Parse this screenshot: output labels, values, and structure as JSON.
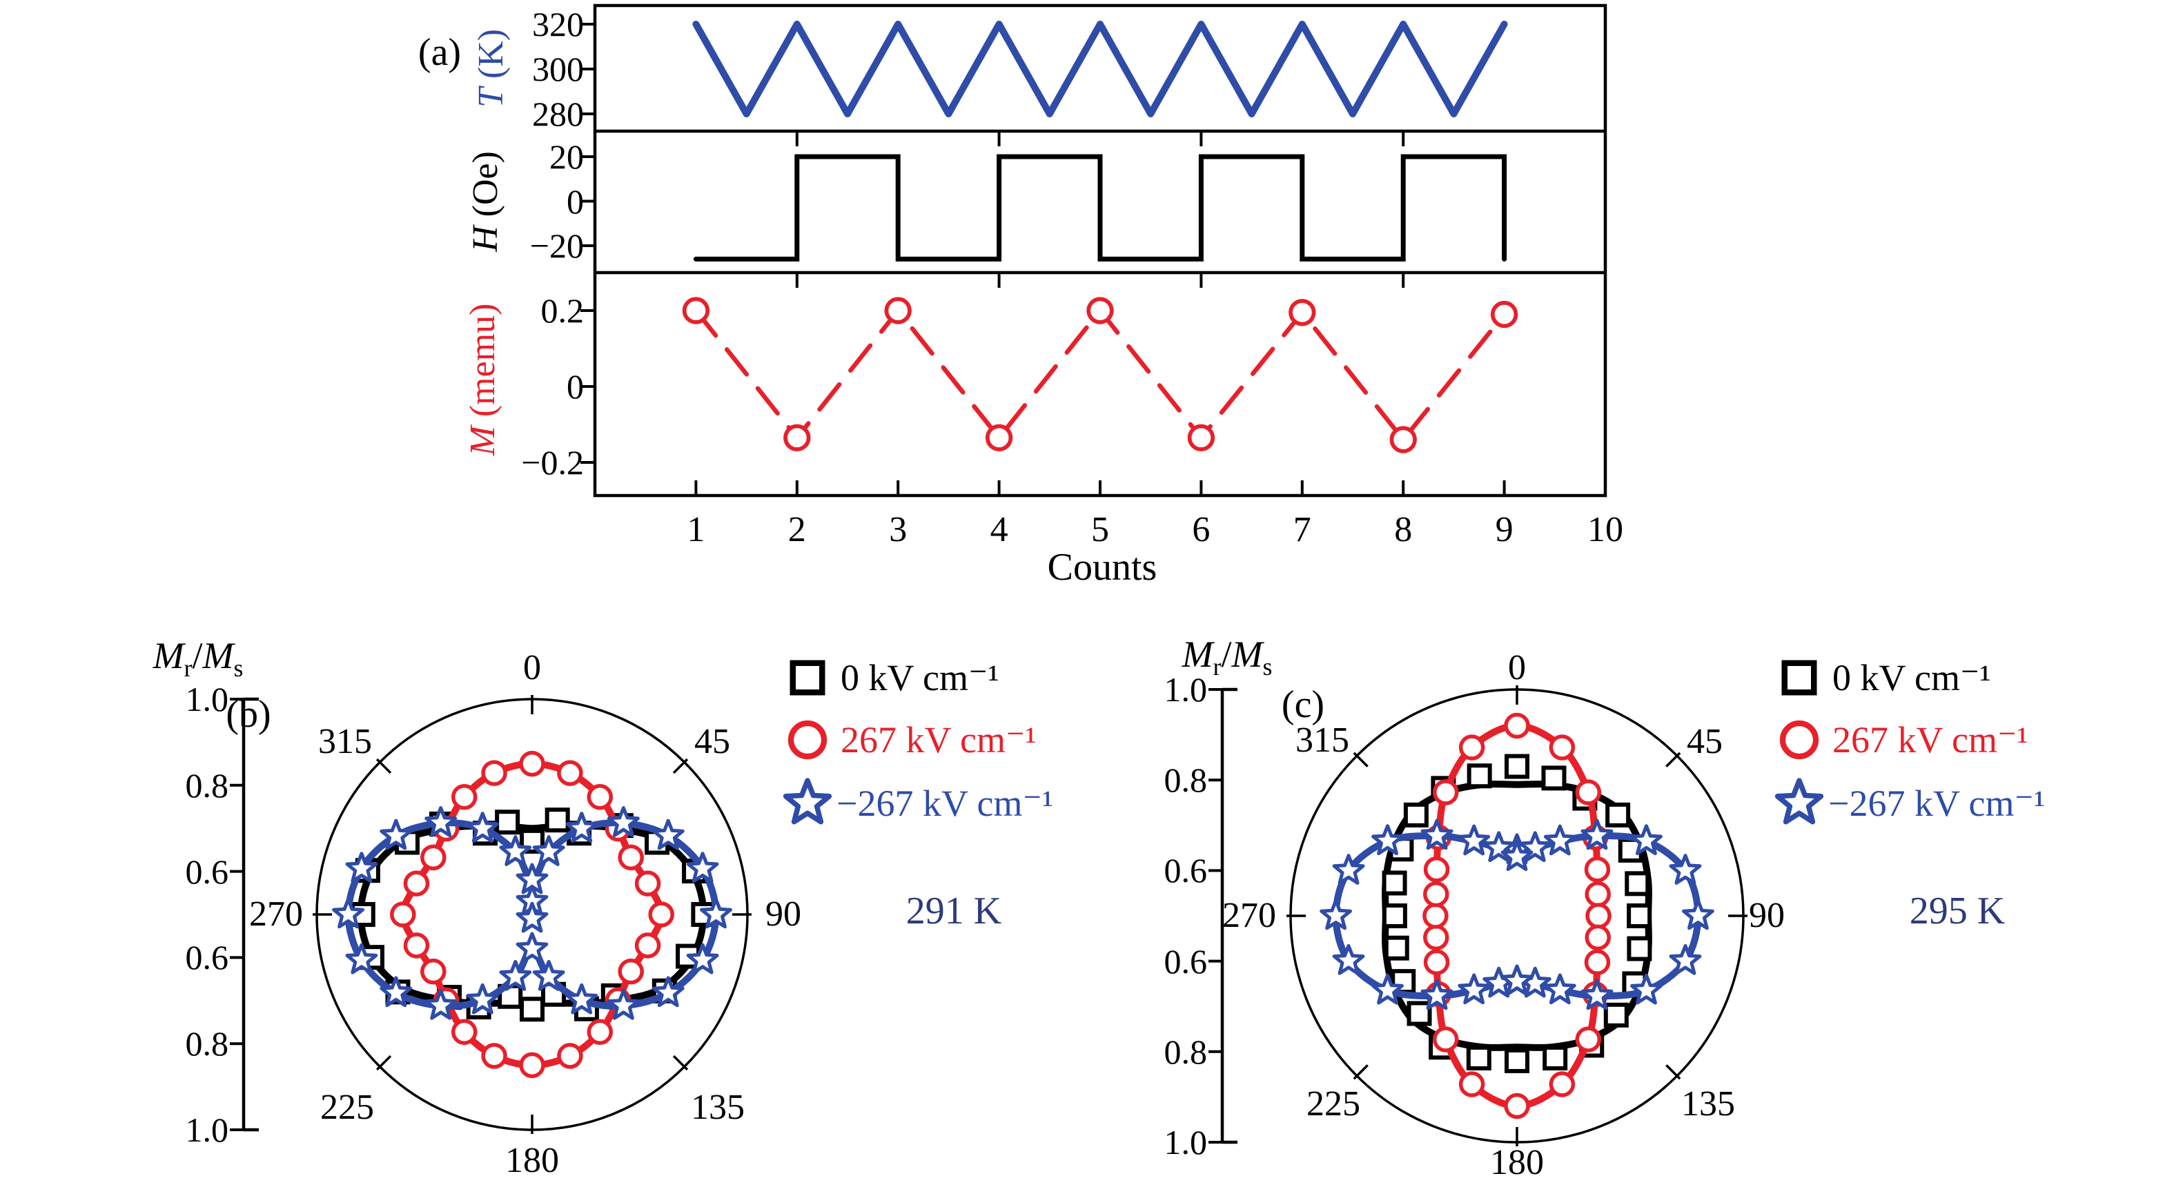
{
  "radial_axis_label": {
    "base1": "M",
    "sub1": "r",
    "sep": "/",
    "base2": "M",
    "sub2": "s"
  },
  "chart_data": [
    {
      "panel_label": "(a)",
      "type": "line",
      "xlabel": "Counts",
      "x_range": [
        0,
        10
      ],
      "x_ticks": [
        1,
        2,
        3,
        4,
        5,
        6,
        7,
        8,
        9,
        10
      ],
      "x_tick_labels": [
        "1",
        "2",
        "3",
        "4",
        "5",
        "6",
        "7",
        "8",
        "9",
        "10"
      ],
      "subpanels": [
        {
          "var": "T",
          "unit": "(K)",
          "color": "#2e4ca8",
          "y_ticks": [
            320,
            300,
            280
          ],
          "y_tick_labels": [
            "320",
            "300",
            "280"
          ],
          "style": "triangle-wave",
          "line_width": 10,
          "points": [
            [
              1,
              320
            ],
            [
              1.5,
              280
            ],
            [
              2,
              320
            ],
            [
              2.5,
              280
            ],
            [
              3,
              320
            ],
            [
              3.5,
              280
            ],
            [
              4,
              320
            ],
            [
              4.5,
              280
            ],
            [
              5,
              320
            ],
            [
              5.5,
              280
            ],
            [
              6,
              320
            ],
            [
              6.5,
              280
            ],
            [
              7,
              320
            ],
            [
              7.5,
              280
            ],
            [
              8,
              320
            ],
            [
              8.5,
              280
            ],
            [
              9,
              320
            ]
          ]
        },
        {
          "var": "H",
          "unit": "(Oe)",
          "color": "#000000",
          "y_ticks": [
            20,
            0,
            -20
          ],
          "y_tick_labels": [
            "20",
            "0",
            "−20"
          ],
          "style": "square-wave",
          "line_width": 7,
          "points": [
            [
              1,
              -26
            ],
            [
              2,
              -26
            ],
            [
              2,
              20
            ],
            [
              3,
              20
            ],
            [
              3,
              -26
            ],
            [
              4,
              -26
            ],
            [
              4,
              20
            ],
            [
              5,
              20
            ],
            [
              5,
              -26
            ],
            [
              6,
              -26
            ],
            [
              6,
              20
            ],
            [
              7,
              20
            ],
            [
              7,
              -26
            ],
            [
              8,
              -26
            ],
            [
              8,
              20
            ],
            [
              9,
              20
            ],
            [
              9,
              -26
            ]
          ]
        },
        {
          "var": "M",
          "unit": "(memu)",
          "color": "#e8202a",
          "y_ticks": [
            0.2,
            0,
            -0.2
          ],
          "y_tick_labels": [
            "0.2",
            "0",
            "−0.2"
          ],
          "style": "dashed-line-open-circles",
          "line_width": 6.5,
          "points": [
            [
              1,
              0.2
            ],
            [
              2,
              -0.135
            ],
            [
              3,
              0.2
            ],
            [
              4,
              -0.135
            ],
            [
              5,
              0.2
            ],
            [
              6,
              -0.135
            ],
            [
              7,
              0.195
            ],
            [
              8,
              -0.14
            ],
            [
              9,
              0.19
            ]
          ]
        }
      ]
    },
    {
      "panel_label": "(b)",
      "type": "polar",
      "temperature": "291 K",
      "temp_color": "#2c3a7c",
      "center_value": 0.5,
      "outer_value": 1.0,
      "radial_tick_labels": [
        "1.0",
        "0.8",
        "0.6",
        "0.6",
        "0.8",
        "1.0"
      ],
      "angle_ticks_deg": [
        0,
        45,
        90,
        135,
        180,
        225,
        270,
        315
      ],
      "angle_labels": [
        "0",
        "45",
        "90",
        "135",
        "180",
        "225",
        "270",
        "315"
      ],
      "series": [
        {
          "name": "0 kV cm⁻¹",
          "color": "#000000",
          "marker": "square",
          "angle_step_deg": 15,
          "r": [
            0.7,
            0.712,
            0.738,
            0.782,
            0.845,
            0.885,
            0.898,
            0.885,
            0.845,
            0.782,
            0.738,
            0.712,
            0.7,
            0.712,
            0.738,
            0.782,
            0.845,
            0.885,
            0.898,
            0.885,
            0.845,
            0.782,
            0.738,
            0.712
          ],
          "marker_r": [
            0.67,
            0.727,
            0.718,
            0.792,
            0.835,
            0.89,
            0.898,
            0.875,
            0.855,
            0.767,
            0.753,
            0.692,
            0.72,
            0.697,
            0.748,
            0.772,
            0.86,
            0.885,
            0.893,
            0.895,
            0.835,
            0.797,
            0.718,
            0.722
          ]
        },
        {
          "name": "267 kV cm⁻¹",
          "color": "#e8202a",
          "marker": "circle",
          "angle_step_deg": 15,
          "r": [
            0.85,
            0.84,
            0.815,
            0.782,
            0.765,
            0.778,
            0.8,
            0.778,
            0.765,
            0.782,
            0.815,
            0.84,
            0.85,
            0.84,
            0.815,
            0.782,
            0.765,
            0.778,
            0.8,
            0.778,
            0.765,
            0.782,
            0.815,
            0.84
          ]
        },
        {
          "name": "−267 kV cm⁻¹",
          "color": "#2e4ca8",
          "marker": "star",
          "angle_step_deg": 15,
          "r": [
            0.58,
            0.65,
            0.73,
            0.8,
            0.865,
            0.91,
            0.927,
            0.91,
            0.865,
            0.8,
            0.73,
            0.65,
            0.58,
            0.65,
            0.73,
            0.8,
            0.865,
            0.91,
            0.927,
            0.91,
            0.865,
            0.8,
            0.73,
            0.65
          ],
          "extra_points": [
            [
              0,
              0.53
            ],
            [
              180,
              0.51
            ]
          ]
        }
      ]
    },
    {
      "panel_label": "(c)",
      "type": "polar",
      "temperature": "295 K",
      "temp_color": "#2c3a7c",
      "center_value": 0.5,
      "outer_value": 1.0,
      "radial_tick_labels": [
        "1.0",
        "0.8",
        "0.6",
        "0.6",
        "0.8",
        "1.0"
      ],
      "angle_ticks_deg": [
        0,
        45,
        90,
        135,
        180,
        225,
        270,
        315
      ],
      "angle_labels": [
        "0",
        "45",
        "90",
        "135",
        "180",
        "225",
        "270",
        "315"
      ],
      "series": [
        {
          "name": "0 kV cm⁻¹",
          "color": "#000000",
          "marker": "square",
          "angle_step_deg": 15,
          "r": [
            0.79,
            0.8,
            0.815,
            0.825,
            0.815,
            0.8,
            0.79,
            0.8,
            0.815,
            0.825,
            0.815,
            0.8,
            0.79,
            0.8,
            0.815,
            0.825,
            0.815,
            0.8,
            0.79,
            0.8,
            0.815,
            0.825,
            0.815,
            0.8
          ],
          "marker_r": [
            0.83,
            0.815,
            0.8,
            0.815,
            0.79,
            0.775,
            0.77,
            0.78,
            0.8,
            0.81,
            0.83,
            0.825,
            0.82,
            0.825,
            0.835,
            0.805,
            0.79,
            0.775,
            0.77,
            0.78,
            0.795,
            0.815,
            0.825,
            0.82
          ]
        },
        {
          "name": "267 kV cm⁻¹",
          "color": "#e8202a",
          "marker": "circle",
          "angle_step_deg": 15,
          "r": [
            0.92,
            0.885,
            0.815,
            0.745,
            0.705,
            0.685,
            0.68,
            0.685,
            0.705,
            0.745,
            0.815,
            0.885,
            0.92,
            0.885,
            0.815,
            0.745,
            0.705,
            0.685,
            0.68,
            0.685,
            0.705,
            0.745,
            0.815,
            0.885
          ]
        },
        {
          "name": "−267 kV cm⁻¹",
          "color": "#2e4ca8",
          "marker": "star",
          "angle_step_deg": 15,
          "r": [
            0.645,
            0.655,
            0.69,
            0.75,
            0.83,
            0.885,
            0.9,
            0.885,
            0.83,
            0.75,
            0.69,
            0.655,
            0.645,
            0.655,
            0.69,
            0.75,
            0.83,
            0.885,
            0.9,
            0.885,
            0.83,
            0.75,
            0.69,
            0.655
          ],
          "extra_points": [
            [
              0,
              0.63
            ],
            [
              180,
              0.645
            ]
          ]
        }
      ]
    }
  ]
}
